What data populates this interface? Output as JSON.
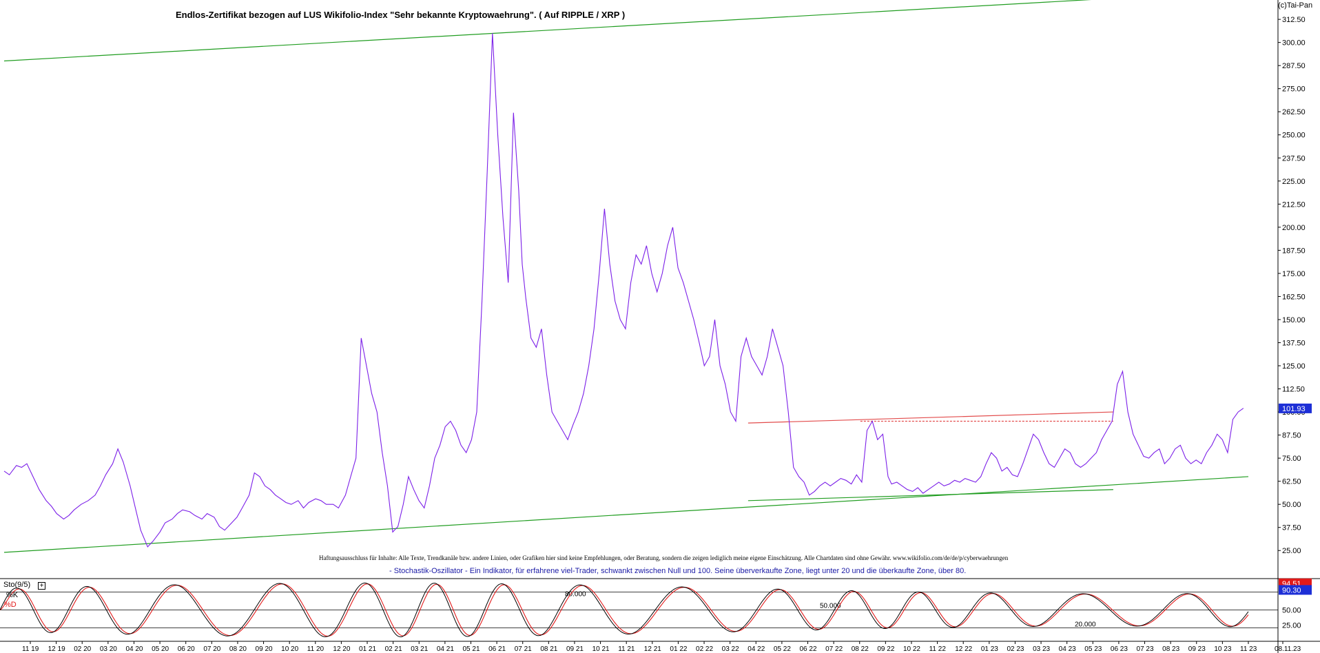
{
  "header": {
    "title": "Endlos-Zertifikat bezogen auf LUS Wikifolio-Index \"Sehr bekannte Kryptowaehrung\". ( Auf RIPPLE / XRP )",
    "copyright": "(c)Tai-Pan"
  },
  "disclaimer": "Haftungsausschluss für Inhalte: Alle Texte, Trendkanäle bzw. andere Linien, oder Grafiken hier sind keine Empfehlungen, oder Beratung, sondern die zeigen lediglich meine eigene Einschätzung. Alle Chartdaten sind ohne Gewähr. www.wikifolio.com/de/de/p/cyberwaehrungen",
  "stochastic_note": "- Stochastik-Oszillator - Ein Indikator, für erfahrene viel-Trader, schwankt zwischen Null und 100. Seine überverkaufte Zone, liegt unter 20 und die überkaufte Zone, über 80.",
  "sto_panel": {
    "label": "Sto(9/5)",
    "button": "+",
    "k_label": "%K",
    "d_label": "%D",
    "value_k": "94.51",
    "value_d": "90.30",
    "level_labels": [
      "80.000",
      "50.000",
      "20.000"
    ]
  },
  "colors": {
    "price_line": "#7b1fe8",
    "trend_green": "#1f9c1f",
    "resistance_red": "#e24a4a",
    "stoch_k": "#000000",
    "stoch_d": "#e21a1a",
    "last_price_badge": "#1d2fd6",
    "k_badge": "#e21a1a",
    "d_badge": "#1d2fd6",
    "oscillator_note": "#1a1aa6"
  },
  "chart_data": [
    {
      "type": "line",
      "title": "Endlos-Zertifikat bezogen auf LUS Wikifolio-Index \"Sehr bekannte Kryptowaehrung\". ( Auf RIPPLE / XRP )",
      "xlabel": "",
      "ylabel": "",
      "ylim": [
        18,
        320
      ],
      "y_ticks": [
        "312.50",
        "300.00",
        "287.50",
        "275.00",
        "262.50",
        "250.00",
        "237.50",
        "225.00",
        "212.50",
        "200.00",
        "187.50",
        "175.00",
        "162.50",
        "150.00",
        "137.50",
        "125.00",
        "112.50",
        "100.00",
        "87.50",
        "75.00",
        "62.50",
        "50.00",
        "37.50",
        "25.00"
      ],
      "x_ticks": [
        "11 19",
        "12 19",
        "02 20",
        "03 20",
        "04 20",
        "05 20",
        "06 20",
        "07 20",
        "08 20",
        "09 20",
        "10 20",
        "11 20",
        "12 20",
        "01 21",
        "02 21",
        "03 21",
        "04 21",
        "05 21",
        "06 21",
        "07 21",
        "08 21",
        "09 21",
        "10 21",
        "11 21",
        "12 21",
        "01 22",
        "02 22",
        "03 22",
        "04 22",
        "05 22",
        "06 22",
        "07 22",
        "08 22",
        "09 22",
        "10 22",
        "11 22",
        "12 22",
        "01 23",
        "02 23",
        "03 23",
        "04 23",
        "05 23",
        "06 23",
        "07 23",
        "08 23",
        "09 23",
        "10 23",
        "11 23",
        "08.11.23"
      ],
      "last_value": "101.93",
      "grid": false,
      "series": [
        {
          "x": [
            0,
            3,
            7,
            10,
            13,
            17,
            20,
            24,
            27,
            30,
            34,
            37,
            40,
            44,
            48,
            52,
            55,
            58,
            62,
            65,
            68,
            72,
            75,
            78,
            82,
            85,
            89,
            92,
            96,
            99,
            102,
            106,
            109,
            113,
            116,
            120,
            123,
            126,
            130,
            133,
            136,
            140,
            143,
            146,
            149,
            152,
            155,
            158,
            161,
            164,
            168,
            171,
            174,
            178,
            181,
            184,
            188,
            191,
            195,
            198,
            201,
            204,
            207,
            210,
            213,
            216,
            219,
            222,
            225,
            228,
            231,
            234,
            237,
            240,
            243,
            246,
            249,
            252,
            255,
            258,
            261,
            264,
            267,
            270,
            273,
            276,
            279,
            282,
            285,
            288,
            291,
            294,
            296,
            298,
            301,
            304,
            307,
            310,
            313,
            316,
            319,
            322,
            325,
            328,
            331,
            334,
            337,
            340,
            343,
            346,
            349,
            352,
            355,
            358,
            361,
            364,
            367,
            370,
            373,
            376,
            379,
            382,
            385,
            388,
            391,
            394,
            397,
            400,
            403,
            406,
            409,
            412,
            415,
            418,
            421,
            424,
            427,
            430,
            433,
            436,
            439,
            442,
            445,
            448,
            451,
            454,
            457,
            460,
            463,
            466,
            469,
            472,
            475,
            478,
            481,
            484,
            487,
            490,
            493,
            496,
            499,
            502,
            505,
            507
          ],
          "y": [
            68,
            66,
            71,
            70,
            72,
            64,
            58,
            52,
            49,
            45,
            42,
            44,
            47,
            50,
            52,
            55,
            60,
            66,
            72,
            80,
            73,
            60,
            48,
            36,
            27,
            30,
            35,
            40,
            42,
            45,
            47,
            46,
            44,
            42,
            45,
            43,
            38,
            36,
            40,
            43,
            48,
            55,
            67,
            65,
            60,
            58,
            55,
            53,
            51,
            50,
            52,
            48,
            51,
            53,
            52,
            50,
            50,
            48,
            55,
            65,
            75,
            140,
            125,
            110,
            100,
            78,
            60,
            35,
            38,
            50,
            65,
            58,
            52,
            48,
            60,
            75,
            82,
            92,
            95,
            90,
            82,
            78,
            85,
            100,
            160,
            230,
            305,
            250,
            205,
            170,
            262,
            220,
            180,
            162,
            140,
            135,
            145,
            120,
            100,
            95,
            90,
            85,
            93,
            100,
            110,
            125,
            145,
            175,
            210,
            180,
            160,
            150,
            145,
            170,
            185,
            180,
            190,
            175,
            165,
            175,
            190,
            200,
            178,
            170,
            160,
            150,
            138,
            125,
            130,
            150,
            125,
            115,
            100,
            95,
            130,
            140,
            130,
            125,
            120,
            130,
            145,
            135,
            125,
            100,
            70,
            65,
            62,
            55,
            57,
            60,
            62,
            60,
            62,
            64,
            63,
            61,
            66,
            62,
            90,
            95,
            85,
            88,
            65,
            61
          ]
        },
        {
          "x": [
            507,
            510,
            513,
            516,
            519,
            522,
            525,
            528,
            531,
            534,
            537,
            540,
            543,
            546,
            549,
            552,
            555,
            558,
            561,
            564,
            567,
            570,
            573,
            576,
            579,
            582,
            585,
            588,
            591,
            594,
            597,
            600,
            603,
            606,
            609,
            612,
            615,
            618,
            621,
            624,
            627,
            630,
            633,
            636,
            639,
            642,
            645,
            648,
            651,
            654,
            657,
            660,
            663,
            666,
            669,
            672,
            675,
            678,
            681,
            684,
            687,
            690,
            693,
            696,
            699,
            702,
            705,
            708
          ],
          "y": [
            61,
            62,
            60,
            58,
            57,
            59,
            56,
            58,
            60,
            62,
            60,
            61,
            63,
            62,
            64,
            63,
            62,
            65,
            72,
            78,
            75,
            68,
            70,
            66,
            65,
            72,
            80,
            88,
            85,
            78,
            72,
            70,
            75,
            80,
            78,
            72,
            70,
            72,
            75,
            78,
            85,
            90,
            95,
            115,
            122,
            100,
            88,
            82,
            76,
            75,
            78,
            80,
            72,
            75,
            80,
            82,
            75,
            72,
            74,
            72,
            78,
            82,
            88,
            85,
            78,
            96,
            100,
            102
          ]
        }
      ],
      "annotations": {
        "upper_trendline": {
          "x": [
            0,
            1363
          ],
          "y": [
            290,
            328
          ]
        },
        "lower_trendline": {
          "x": [
            0,
            1363
          ],
          "y": [
            24,
            65
          ]
        },
        "support_line": {
          "x": [
            815,
            1215
          ],
          "y": [
            52,
            58
          ]
        },
        "resistance_line": {
          "x": [
            815,
            1215
          ],
          "y": [
            94,
            100
          ]
        },
        "resistance_dashed": {
          "x": [
            938,
            1215
          ],
          "y": [
            95,
            95
          ]
        }
      }
    },
    {
      "type": "line",
      "title": "Sto(9/5)",
      "ylim": [
        0,
        100
      ],
      "y_ticks": [
        "94.51",
        "90.30",
        "50.00",
        "25.00"
      ],
      "levels": [
        80,
        50,
        20
      ],
      "series": [
        {
          "name": "%K",
          "last_value": 94.51
        },
        {
          "name": "%D",
          "last_value": 90.3
        }
      ]
    }
  ]
}
